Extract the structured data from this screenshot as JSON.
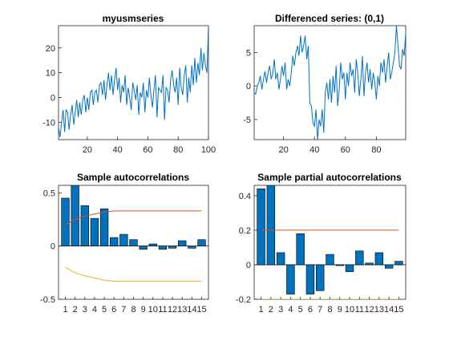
{
  "chart_data": [
    {
      "type": "line",
      "title": "myusmseries",
      "xlim": [
        1,
        100
      ],
      "ylim": [
        -17,
        29
      ],
      "xticks": [
        20,
        40,
        60,
        80,
        100
      ],
      "yticks": [
        -10,
        0,
        10,
        20
      ],
      "x_start": 1,
      "series": [
        {
          "color": "#0072BD",
          "values": [
            -12,
            -16,
            -10,
            -5,
            -14,
            -5,
            -6,
            -13,
            -7,
            -3,
            -11,
            -6,
            -1,
            -8,
            -2,
            -7,
            -1,
            1,
            -6,
            0,
            -5,
            2,
            3,
            -3,
            2,
            3,
            -2,
            5,
            6,
            1,
            7,
            -1,
            5,
            10,
            3,
            9,
            1,
            7,
            12,
            3,
            8,
            -2,
            5,
            2,
            9,
            -3,
            4,
            0,
            -5,
            6,
            3,
            -1,
            5,
            -7,
            2,
            0,
            6,
            -6,
            3,
            0,
            8,
            1,
            -4,
            3,
            9,
            -8,
            4,
            3,
            2,
            9,
            -9,
            4,
            3,
            -2,
            7,
            11,
            5,
            2,
            8,
            -3,
            12,
            4,
            1,
            9,
            13,
            -2,
            8,
            2,
            13,
            5,
            16,
            6,
            14,
            9,
            20,
            11,
            18,
            13,
            10,
            29
          ]
        }
      ]
    },
    {
      "type": "line",
      "title": "Differenced series: (0,1)",
      "xlim": [
        1,
        99
      ],
      "ylim": [
        -8,
        9
      ],
      "xticks": [
        20,
        40,
        60,
        80
      ],
      "yticks": [
        -5,
        0,
        5
      ],
      "x_start": 1,
      "series": [
        {
          "color": "#0072BD",
          "values": [
            -1,
            -1.2,
            0,
            0.5,
            1.5,
            -0.5,
            1,
            2.2,
            0.5,
            2,
            3,
            1,
            1.8,
            4,
            1,
            2,
            -0.5,
            1,
            3,
            1.5,
            3.5,
            -0.5,
            1,
            0,
            2,
            4.5,
            3,
            5,
            6,
            4.5,
            7.5,
            5,
            6,
            7.5,
            4,
            6,
            -2.5,
            -3,
            -5.5,
            -6,
            -3.5,
            -8,
            -5,
            -6,
            -3.5,
            -7,
            -1,
            0.5,
            -2,
            1,
            -2.5,
            1.5,
            -1,
            3,
            -3,
            -0.5,
            3.5,
            1,
            2,
            -2,
            2,
            0,
            3.5,
            1.5,
            2.5,
            -1,
            4,
            2,
            -1.5,
            1,
            4.5,
            -1.5,
            2,
            3.5,
            0.5,
            2.5,
            -0.5,
            2,
            0.5,
            -2,
            1.5,
            0,
            3.5,
            2,
            4,
            0.5,
            3,
            5,
            1,
            2,
            3.5,
            5,
            9,
            6,
            3,
            2.5,
            5.5,
            4.5,
            8
          ]
        }
      ]
    },
    {
      "type": "bar",
      "title": "Sample autocorrelations",
      "categories": [
        "1",
        "2",
        "3",
        "4",
        "5",
        "6",
        "7",
        "8",
        "9",
        "10",
        "11",
        "12",
        "13",
        "14",
        "15"
      ],
      "xlim": [
        0.3,
        15.7
      ],
      "ylim": [
        -0.5,
        0.57
      ],
      "yticks": [
        -0.5,
        0,
        0.5
      ],
      "values": [
        0.45,
        0.57,
        0.38,
        0.26,
        0.35,
        0.08,
        0.11,
        0.06,
        -0.03,
        0.02,
        -0.03,
        -0.02,
        0.05,
        -0.02,
        0.06
      ],
      "bar_color": "#0072BD",
      "upper_bound": {
        "color": "#D95319",
        "x": [
          1,
          2,
          3,
          4,
          5,
          6,
          7,
          8,
          9,
          10,
          11,
          12,
          13,
          14,
          15
        ],
        "y": [
          0.2,
          0.25,
          0.28,
          0.3,
          0.32,
          0.33,
          0.33,
          0.33,
          0.33,
          0.33,
          0.33,
          0.33,
          0.33,
          0.33,
          0.33
        ]
      },
      "lower_bound": {
        "color": "#EDB120",
        "x": [
          1,
          2,
          3,
          4,
          5,
          6,
          7,
          8,
          9,
          10,
          11,
          12,
          13,
          14,
          15
        ],
        "y": [
          -0.2,
          -0.25,
          -0.28,
          -0.3,
          -0.32,
          -0.33,
          -0.33,
          -0.33,
          -0.33,
          -0.33,
          -0.33,
          -0.33,
          -0.33,
          -0.33,
          -0.33
        ]
      }
    },
    {
      "type": "bar",
      "title": "Sample partial autocorrelations",
      "categories": [
        "1",
        "2",
        "3",
        "4",
        "5",
        "6",
        "7",
        "8",
        "9",
        "10",
        "11",
        "12",
        "13",
        "14",
        "15"
      ],
      "xlim": [
        0.3,
        15.7
      ],
      "ylim": [
        -0.2,
        0.46
      ],
      "yticks": [
        -0.2,
        0,
        0.2,
        0.4
      ],
      "values": [
        0.44,
        0.46,
        0.07,
        -0.17,
        0.18,
        -0.17,
        -0.15,
        0.06,
        -0.005,
        -0.04,
        0.08,
        0.01,
        0.07,
        -0.02,
        0.02
      ],
      "bar_color": "#0072BD",
      "upper_bound": {
        "color": "#D95319",
        "x": [
          1,
          15
        ],
        "y": [
          0.2,
          0.2
        ]
      },
      "lower_bound": {
        "color": "#EDB120",
        "x": [
          1,
          15
        ],
        "y": [
          -0.2,
          -0.2
        ]
      }
    }
  ]
}
